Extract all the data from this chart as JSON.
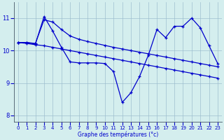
{
  "xlabel": "Graphe des températures (°c)",
  "background_color": "#d4eeee",
  "line_color": "#0000cc",
  "grid_color": "#99bbcc",
  "xlim": [
    -0.5,
    23.5
  ],
  "ylim": [
    7.8,
    11.5
  ],
  "xticks": [
    0,
    1,
    2,
    3,
    4,
    5,
    6,
    7,
    8,
    9,
    10,
    11,
    12,
    13,
    14,
    15,
    16,
    17,
    18,
    19,
    20,
    21,
    22,
    23
  ],
  "yticks": [
    8,
    9,
    10,
    11
  ],
  "curve1_x": [
    0,
    1,
    2,
    3,
    4,
    5,
    6,
    7,
    8,
    9,
    10,
    11,
    12,
    13,
    14,
    15,
    16,
    17,
    18,
    19,
    20,
    21,
    22,
    23
  ],
  "curve1_y": [
    10.25,
    10.25,
    10.2,
    11.05,
    10.6,
    10.1,
    9.65,
    9.62,
    9.62,
    9.62,
    9.6,
    9.35,
    8.4,
    8.7,
    9.2,
    9.85,
    10.65,
    10.4,
    10.75,
    10.75,
    11.0,
    10.7,
    10.15,
    9.6
  ],
  "curve2_x": [
    0,
    1,
    2,
    3,
    4,
    5,
    6,
    7,
    8,
    9,
    10,
    11,
    12,
    13,
    14,
    15,
    16,
    17,
    18,
    19,
    20,
    21,
    22,
    23
  ],
  "curve2_y": [
    10.25,
    10.25,
    10.22,
    10.95,
    10.88,
    10.65,
    10.45,
    10.35,
    10.28,
    10.22,
    10.16,
    10.1,
    10.05,
    10.0,
    9.95,
    9.9,
    9.85,
    9.8,
    9.75,
    9.7,
    9.65,
    9.6,
    9.55,
    9.5
  ],
  "curve3_x": [
    0,
    1,
    2,
    3,
    4,
    5,
    6,
    7,
    8,
    9,
    10,
    11,
    12,
    13,
    14,
    15,
    16,
    17,
    18,
    19,
    20,
    21,
    22,
    23
  ],
  "curve3_y": [
    10.25,
    10.22,
    10.18,
    10.15,
    10.1,
    10.05,
    10.0,
    9.95,
    9.9,
    9.85,
    9.8,
    9.75,
    9.7,
    9.65,
    9.6,
    9.55,
    9.5,
    9.45,
    9.4,
    9.35,
    9.3,
    9.25,
    9.2,
    9.15
  ]
}
